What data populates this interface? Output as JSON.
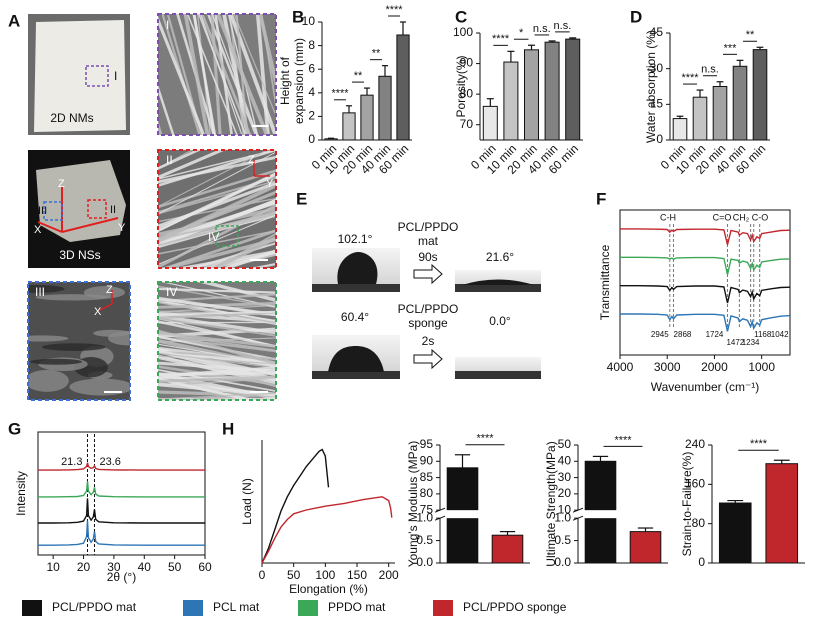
{
  "panel_labels": [
    "A",
    "B",
    "C",
    "D",
    "E",
    "F",
    "G",
    "H"
  ],
  "panel_a": {
    "photo_2d": {
      "caption": "2D NMs",
      "roi": "I"
    },
    "micrograph_1": "I",
    "photo_3d": {
      "caption": "3D NSs",
      "rois": [
        "III",
        "II"
      ],
      "axes": [
        "Z",
        "X",
        "Y"
      ]
    },
    "micrograph_2": {
      "label": "II",
      "roi": "IV",
      "axes": [
        "Z",
        "Y"
      ]
    },
    "micrograph_3": {
      "label": "III",
      "axes": [
        "Z",
        "X"
      ]
    },
    "micrograph_4": "IV"
  },
  "panel_e": {
    "mat": {
      "angle_before": "102.1°",
      "label": [
        "PCL/PPDO",
        "mat"
      ],
      "time": "90s",
      "angle_after": "21.6°"
    },
    "sponge": {
      "angle_before": "60.4°",
      "label": [
        "PCL/PPDO",
        "sponge"
      ],
      "time": "2s",
      "angle_after": "0.0°"
    }
  },
  "chart_data": [
    {
      "type": "bar",
      "ylabel": [
        "Height of",
        "expansion (mm)"
      ],
      "categories": [
        "0 min",
        "10 min",
        "20 min",
        "40 min",
        "60 min"
      ],
      "values": [
        0.1,
        2.3,
        3.8,
        5.4,
        8.9
      ],
      "errors": [
        0.05,
        0.6,
        0.6,
        0.9,
        1.1
      ],
      "colors": [
        "#e8e8e8",
        "#c4c4c4",
        "#a3a3a3",
        "#828282",
        "#5e5e5e"
      ],
      "ylim": [
        0,
        10
      ],
      "yticks": [
        0,
        2,
        4,
        6,
        8,
        10
      ],
      "significance": [
        "****",
        "**",
        "**",
        "****"
      ]
    },
    {
      "type": "bar",
      "ylabel": "Porosity(%)",
      "categories": [
        "0 min",
        "10 min",
        "20 min",
        "40 min",
        "60 min"
      ],
      "values": [
        76,
        90.5,
        94.5,
        97,
        98
      ],
      "errors": [
        2.5,
        3.5,
        1.5,
        0.4,
        0.4
      ],
      "colors": [
        "#e8e8e8",
        "#c4c4c4",
        "#a3a3a3",
        "#828282",
        "#5e5e5e"
      ],
      "ylim": [
        65,
        100
      ],
      "yticks": [
        70,
        80,
        90,
        100
      ],
      "significance": [
        "****",
        "*",
        "n.s.",
        "n.s."
      ]
    },
    {
      "type": "bar",
      "ylabel": "Water absorption (%)",
      "categories": [
        "0 min",
        "10 min",
        "20 min",
        "40 min",
        "60 min"
      ],
      "values": [
        9,
        18,
        22.5,
        31,
        38
      ],
      "errors": [
        1,
        3,
        2,
        2.5,
        1
      ],
      "colors": [
        "#e8e8e8",
        "#c4c4c4",
        "#a3a3a3",
        "#828282",
        "#5e5e5e"
      ],
      "ylim": [
        0,
        45
      ],
      "yticks": [
        0,
        15,
        30,
        45
      ],
      "significance": [
        "****",
        "n.s.",
        "***",
        "**"
      ]
    },
    {
      "type": "line",
      "ylabel": "Transmittance",
      "xlabel": "Wavenumber (cm⁻¹)",
      "x": [
        4000,
        3600,
        3200,
        3000,
        2945,
        2900,
        2868,
        2800,
        2400,
        2000,
        1800,
        1724,
        1650,
        1500,
        1472,
        1400,
        1300,
        1234,
        1200,
        1168,
        1100,
        1042,
        1000,
        800,
        600,
        400
      ],
      "series": [
        {
          "color": "#c0272d",
          "values": [
            4.0,
            4.0,
            3.99,
            3.98,
            3.9,
            3.96,
            3.92,
            3.98,
            3.99,
            3.99,
            3.97,
            3.5,
            3.95,
            3.9,
            3.8,
            3.88,
            3.85,
            3.65,
            3.8,
            3.6,
            3.75,
            3.7,
            3.85,
            3.9,
            3.95,
            3.96
          ]
        },
        {
          "color": "#3aa856",
          "values": [
            3.1,
            3.1,
            3.09,
            3.08,
            3.05,
            3.07,
            3.04,
            3.08,
            3.09,
            3.09,
            3.06,
            2.55,
            3.04,
            3.0,
            2.92,
            2.98,
            2.94,
            2.75,
            2.9,
            2.7,
            2.85,
            2.78,
            2.95,
            3.0,
            3.04,
            3.05
          ]
        },
        {
          "color": "#111111",
          "values": [
            2.2,
            2.2,
            2.19,
            2.17,
            2.05,
            2.14,
            2.08,
            2.17,
            2.19,
            2.19,
            2.16,
            1.65,
            2.14,
            2.08,
            1.98,
            2.06,
            2.02,
            1.85,
            2.0,
            1.78,
            1.95,
            1.88,
            2.05,
            2.1,
            2.14,
            2.15
          ]
        },
        {
          "color": "#2e75b6",
          "values": [
            1.3,
            1.3,
            1.29,
            1.27,
            1.12,
            1.22,
            1.15,
            1.27,
            1.29,
            1.29,
            1.26,
            0.75,
            1.24,
            1.17,
            1.06,
            1.15,
            1.1,
            0.9,
            1.06,
            0.85,
            1.02,
            0.95,
            1.12,
            1.18,
            1.23,
            1.25
          ]
        }
      ],
      "xlim": [
        4000,
        400
      ],
      "xticks": [
        4000,
        3000,
        2000,
        1000
      ],
      "ylim": [
        0,
        4.6
      ],
      "peaks": [
        2945,
        2868,
        1724,
        1472,
        1234,
        1168,
        1042
      ],
      "groups": [
        "C-H",
        "C=O",
        "CH₂",
        "C-O"
      ]
    },
    {
      "type": "line",
      "ylabel": "Intensity",
      "xlabel": "2θ (°)",
      "x": [
        5,
        10,
        15,
        18,
        20,
        21,
        21.3,
        21.6,
        22.5,
        23.2,
        23.6,
        24,
        25,
        30,
        40,
        50,
        60
      ],
      "series": [
        {
          "color": "#c0272d",
          "values": [
            3.45,
            3.45,
            3.46,
            3.47,
            3.5,
            3.6,
            3.75,
            3.6,
            3.52,
            3.55,
            3.62,
            3.52,
            3.48,
            3.46,
            3.45,
            3.45,
            3.45
          ]
        },
        {
          "color": "#3aa856",
          "values": [
            2.36,
            2.36,
            2.37,
            2.38,
            2.42,
            2.6,
            3.0,
            2.6,
            2.45,
            2.55,
            2.75,
            2.48,
            2.4,
            2.37,
            2.36,
            2.36,
            2.36
          ]
        },
        {
          "color": "#111111",
          "values": [
            1.3,
            1.3,
            1.31,
            1.33,
            1.38,
            1.6,
            2.3,
            1.6,
            1.42,
            1.55,
            1.85,
            1.45,
            1.35,
            1.31,
            1.3,
            1.3,
            1.3
          ]
        },
        {
          "color": "#2e75b6",
          "values": [
            0.4,
            0.4,
            0.41,
            0.43,
            0.48,
            0.75,
            1.4,
            0.7,
            0.52,
            0.65,
            0.95,
            0.55,
            0.45,
            0.41,
            0.4,
            0.4,
            0.4
          ]
        }
      ],
      "xlim": [
        5,
        60
      ],
      "xticks": [
        10,
        20,
        30,
        40,
        50,
        60
      ],
      "ylim": [
        0,
        5
      ],
      "peaks": [
        21.3,
        23.6
      ]
    },
    {
      "type": "line",
      "ylabel": "Load (N)",
      "xlabel": "Elongation (%)",
      "series": [
        {
          "color": "#111111",
          "x": [
            0,
            10,
            20,
            30,
            40,
            50,
            60,
            70,
            80,
            90,
            95,
            100,
            105
          ],
          "values": [
            0,
            1.5,
            3.5,
            5.5,
            7,
            8.2,
            9.2,
            10.2,
            11,
            11.8,
            12,
            11.3,
            8.0
          ]
        },
        {
          "color": "#c0272d",
          "x": [
            0,
            10,
            20,
            30,
            40,
            50,
            70,
            100,
            130,
            160,
            180,
            190,
            200,
            203,
            205
          ],
          "values": [
            0,
            1.2,
            2.6,
            3.8,
            4.6,
            5.2,
            5.6,
            6.0,
            6.3,
            6.7,
            6.9,
            7.0,
            6.6,
            5.8,
            4.8
          ]
        }
      ],
      "xlim": [
        0,
        210
      ],
      "xticks": [
        0,
        50,
        100,
        150,
        200
      ],
      "ylim": [
        0,
        13
      ]
    },
    {
      "type": "bar",
      "ylabel": "Young's Modulus (MPa)",
      "values": [
        88,
        0.62
      ],
      "errors": [
        4,
        0.08
      ],
      "colors": [
        "#111111",
        "#c0272d"
      ],
      "ylim": [
        [
          0,
          1
        ],
        [
          75,
          95
        ]
      ],
      "yticks": [
        {
          "value": 0,
          "label": "0.0"
        },
        {
          "value": 0.5,
          "label": "0.5"
        },
        {
          "value": 1,
          "label": "1.0"
        },
        75,
        80,
        85,
        90,
        95
      ],
      "significance": [
        "****"
      ]
    },
    {
      "type": "bar",
      "ylabel": "Ultimate Strength(MPa)",
      "values": [
        40,
        0.7
      ],
      "errors": [
        3,
        0.08
      ],
      "colors": [
        "#111111",
        "#c0272d"
      ],
      "ylim": [
        [
          0,
          1
        ],
        [
          10,
          50
        ]
      ],
      "yticks": [
        {
          "value": 0,
          "label": "0.0"
        },
        {
          "value": 0.5,
          "label": "0.5"
        },
        {
          "value": 1,
          "label": "1.0"
        },
        10,
        20,
        30,
        40,
        50
      ],
      "significance": [
        "****"
      ]
    },
    {
      "type": "bar",
      "ylabel": "Strain-to-Failure(%)",
      "values": [
        122,
        202
      ],
      "errors": [
        5,
        7
      ],
      "colors": [
        "#111111",
        "#c0272d"
      ],
      "ylim": [
        0,
        240
      ],
      "yticks": [
        0,
        80,
        160,
        240
      ],
      "significance": [
        "****"
      ]
    }
  ],
  "legend": [
    {
      "name": "PCL/PPDO mat",
      "color": "#111111"
    },
    {
      "name": "PCL mat",
      "color": "#2e75b6"
    },
    {
      "name": "PPDO mat",
      "color": "#3aa856"
    },
    {
      "name": "PCL/PPDO sponge",
      "color": "#c0272d"
    }
  ]
}
